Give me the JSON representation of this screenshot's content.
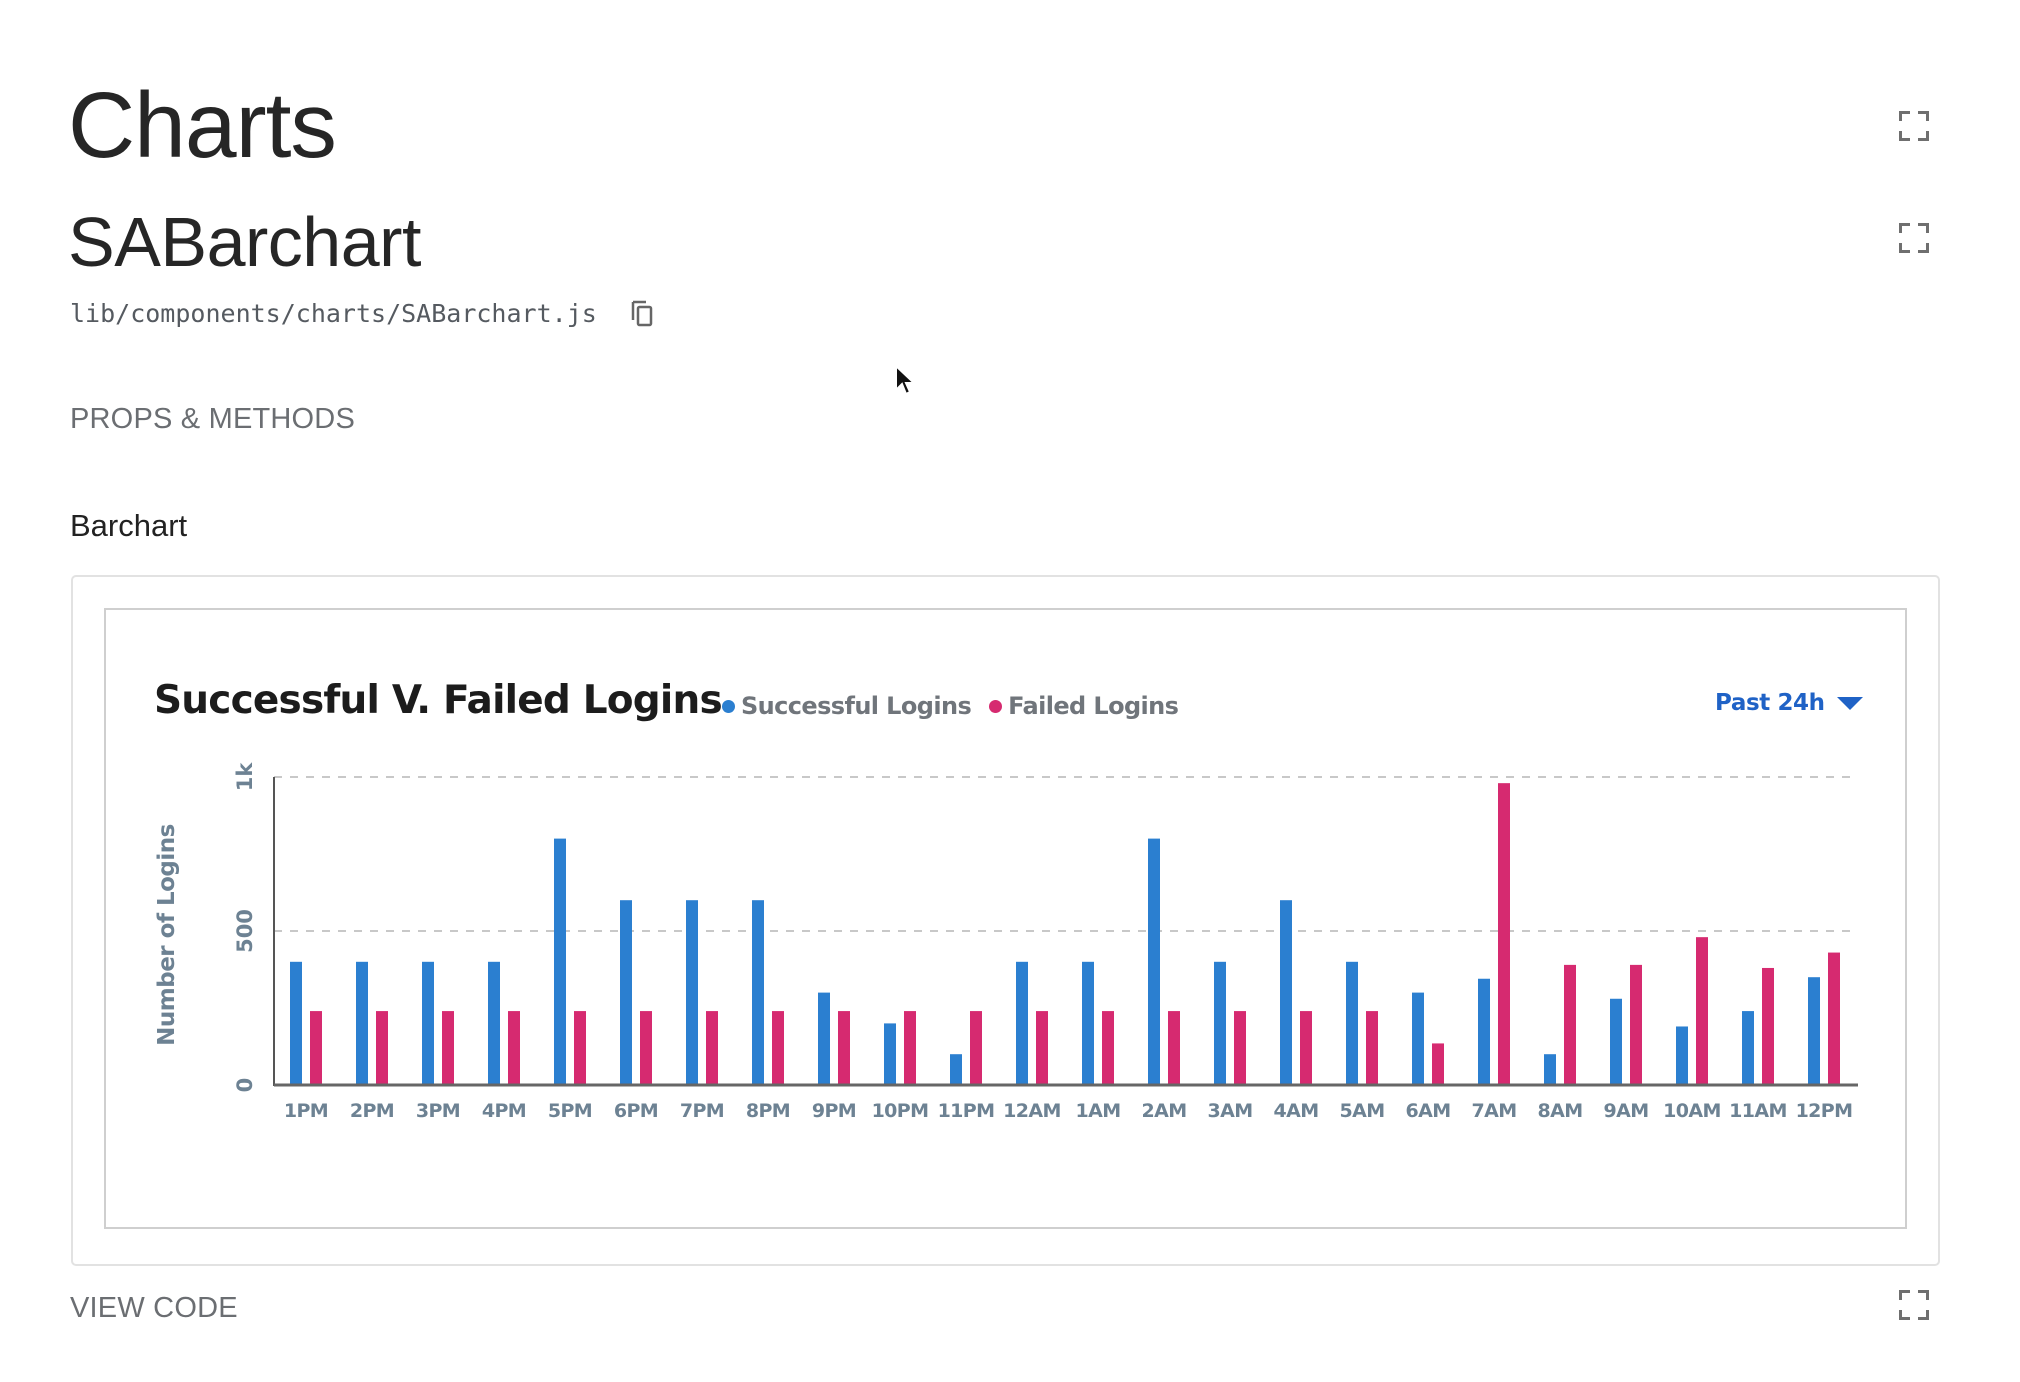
{
  "page": {
    "title": "Charts",
    "component_title": "SABarchart",
    "file_path": "lib/components/charts/SABarchart.js",
    "props_methods_label": "PROPS & METHODS",
    "example_label": "Barchart",
    "view_code_label": "VIEW CODE",
    "icons": {
      "expand": "expand-icon",
      "copy": "copy-icon",
      "dropdown": "caret-down-icon"
    }
  },
  "chart": {
    "title": "Successful V. Failed Logins",
    "legend": [
      {
        "label": "Successful Logins",
        "color": "#2b7fd0"
      },
      {
        "label": "Failed Logins",
        "color": "#d62a70"
      }
    ],
    "range_selector": "Past 24h",
    "accent_color": "#1f62c6"
  },
  "chart_data": {
    "type": "bar",
    "title": "Successful V. Failed Logins",
    "xlabel": "",
    "ylabel": "Number of Logins",
    "ylim": [
      0,
      1000
    ],
    "yticks": [
      0,
      500,
      1000
    ],
    "ytick_labels": [
      "0",
      "500",
      "1k"
    ],
    "grid": "horizontal dashed",
    "legend_position": "top, right of title",
    "categories": [
      "1PM",
      "2PM",
      "3PM",
      "4PM",
      "5PM",
      "6PM",
      "7PM",
      "8PM",
      "9PM",
      "10PM",
      "11PM",
      "12AM",
      "1AM",
      "2AM",
      "3AM",
      "4AM",
      "5AM",
      "6AM",
      "7AM",
      "8AM",
      "9AM",
      "10AM",
      "11AM",
      "12PM"
    ],
    "series": [
      {
        "name": "Successful Logins",
        "color": "#2b7fd0",
        "values": [
          400,
          400,
          400,
          400,
          800,
          600,
          600,
          600,
          300,
          200,
          100,
          400,
          400,
          800,
          400,
          600,
          400,
          300,
          345,
          100,
          280,
          190,
          240,
          350
        ]
      },
      {
        "name": "Failed Logins",
        "color": "#d62a70",
        "values": [
          240,
          240,
          240,
          240,
          240,
          240,
          240,
          240,
          240,
          240,
          240,
          240,
          240,
          240,
          240,
          240,
          240,
          135,
          980,
          390,
          390,
          480,
          380,
          430
        ]
      }
    ]
  }
}
